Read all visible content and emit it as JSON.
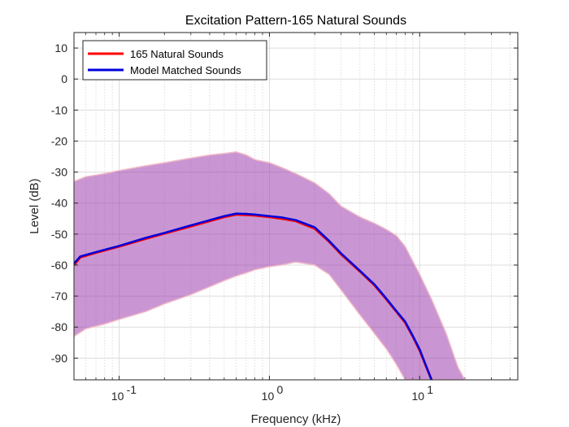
{
  "chart_data": {
    "type": "line",
    "title": "Excitation Pattern-165 Natural Sounds",
    "xlabel": "Frequency (kHz)",
    "ylabel": "Level (dB)",
    "xscale": "log",
    "xlim": [
      0.05,
      45
    ],
    "ylim": [
      -97,
      15
    ],
    "xticks": [
      0.1,
      1,
      10
    ],
    "xtick_labels": [
      [
        "10",
        "-1"
      ],
      [
        "10",
        "0"
      ],
      [
        "10",
        "1"
      ]
    ],
    "yticks": [
      10,
      0,
      -10,
      -20,
      -30,
      -40,
      -50,
      -60,
      -70,
      -80,
      -90
    ],
    "ytick_labels": [
      "10",
      "0",
      "-10",
      "-20",
      "-30",
      "-40",
      "-50",
      "-60",
      "-70",
      "-80",
      "-90"
    ],
    "grid": true,
    "legend_position": "top-left",
    "series": [
      {
        "name": "165 Natural Sounds",
        "color": "#ff0000",
        "x": [
          0.05,
          0.055,
          0.07,
          0.1,
          0.15,
          0.2,
          0.3,
          0.4,
          0.5,
          0.6,
          0.7,
          0.8,
          1.0,
          1.2,
          1.5,
          2.0,
          2.5,
          3.0,
          4.0,
          5.0,
          6.0,
          7.0,
          8.0,
          9.0,
          10.0,
          11.0,
          12.0
        ],
        "y": [
          -60,
          -57.5,
          -56,
          -54,
          -51.5,
          -49.8,
          -47.5,
          -45.8,
          -44.5,
          -43.7,
          -43.8,
          -44.0,
          -44.5,
          -45.0,
          -45.8,
          -48.2,
          -52.5,
          -56.5,
          -62.0,
          -66.5,
          -71.0,
          -75.0,
          -78.5,
          -83.0,
          -87.5,
          -92.5,
          -97
        ]
      },
      {
        "name": "Model Matched Sounds",
        "color": "#0000dd",
        "x": [
          0.05,
          0.055,
          0.07,
          0.1,
          0.15,
          0.2,
          0.3,
          0.4,
          0.5,
          0.6,
          0.7,
          0.8,
          1.0,
          1.2,
          1.5,
          2.0,
          2.5,
          3.0,
          4.0,
          5.0,
          6.0,
          7.0,
          8.0,
          9.0,
          10.0,
          11.0,
          12.0
        ],
        "y": [
          -59.5,
          -57.2,
          -55.8,
          -53.8,
          -51.2,
          -49.6,
          -47.2,
          -45.5,
          -44.2,
          -43.4,
          -43.5,
          -43.7,
          -44.2,
          -44.6,
          -45.5,
          -47.8,
          -52.2,
          -56.2,
          -61.8,
          -66.2,
          -70.8,
          -74.8,
          -78.2,
          -82.8,
          -87.2,
          -92.3,
          -97
        ]
      }
    ],
    "bands": [
      {
        "color": "#9d3fae",
        "opacity": 0.55,
        "x": [
          0.05,
          0.06,
          0.08,
          0.1,
          0.15,
          0.2,
          0.3,
          0.4,
          0.5,
          0.6,
          0.7,
          0.8,
          1.0,
          1.2,
          1.5,
          2.0,
          2.5,
          3.0,
          4.0,
          5.0,
          6.0,
          7.0,
          8.0,
          10.0,
          12.0,
          15.0,
          18.0,
          20.0
        ],
        "upper": [
          -33,
          -31.5,
          -30.5,
          -29.5,
          -28,
          -27,
          -25.5,
          -24.5,
          -24,
          -23.5,
          -24.5,
          -26,
          -27,
          -28.5,
          -30.5,
          -33.5,
          -37,
          -41,
          -44.5,
          -46.5,
          -48.5,
          -50.5,
          -54,
          -63,
          -71,
          -82,
          -93,
          -97
        ],
        "lower": [
          -83,
          -80.5,
          -79,
          -77.5,
          -75,
          -72.5,
          -69.5,
          -67,
          -65,
          -63.5,
          -62.5,
          -61.5,
          -60.5,
          -60,
          -59,
          -60,
          -63,
          -68,
          -76,
          -82,
          -87,
          -92,
          -97,
          -97,
          -97,
          -97,
          -97,
          -97
        ]
      }
    ]
  }
}
